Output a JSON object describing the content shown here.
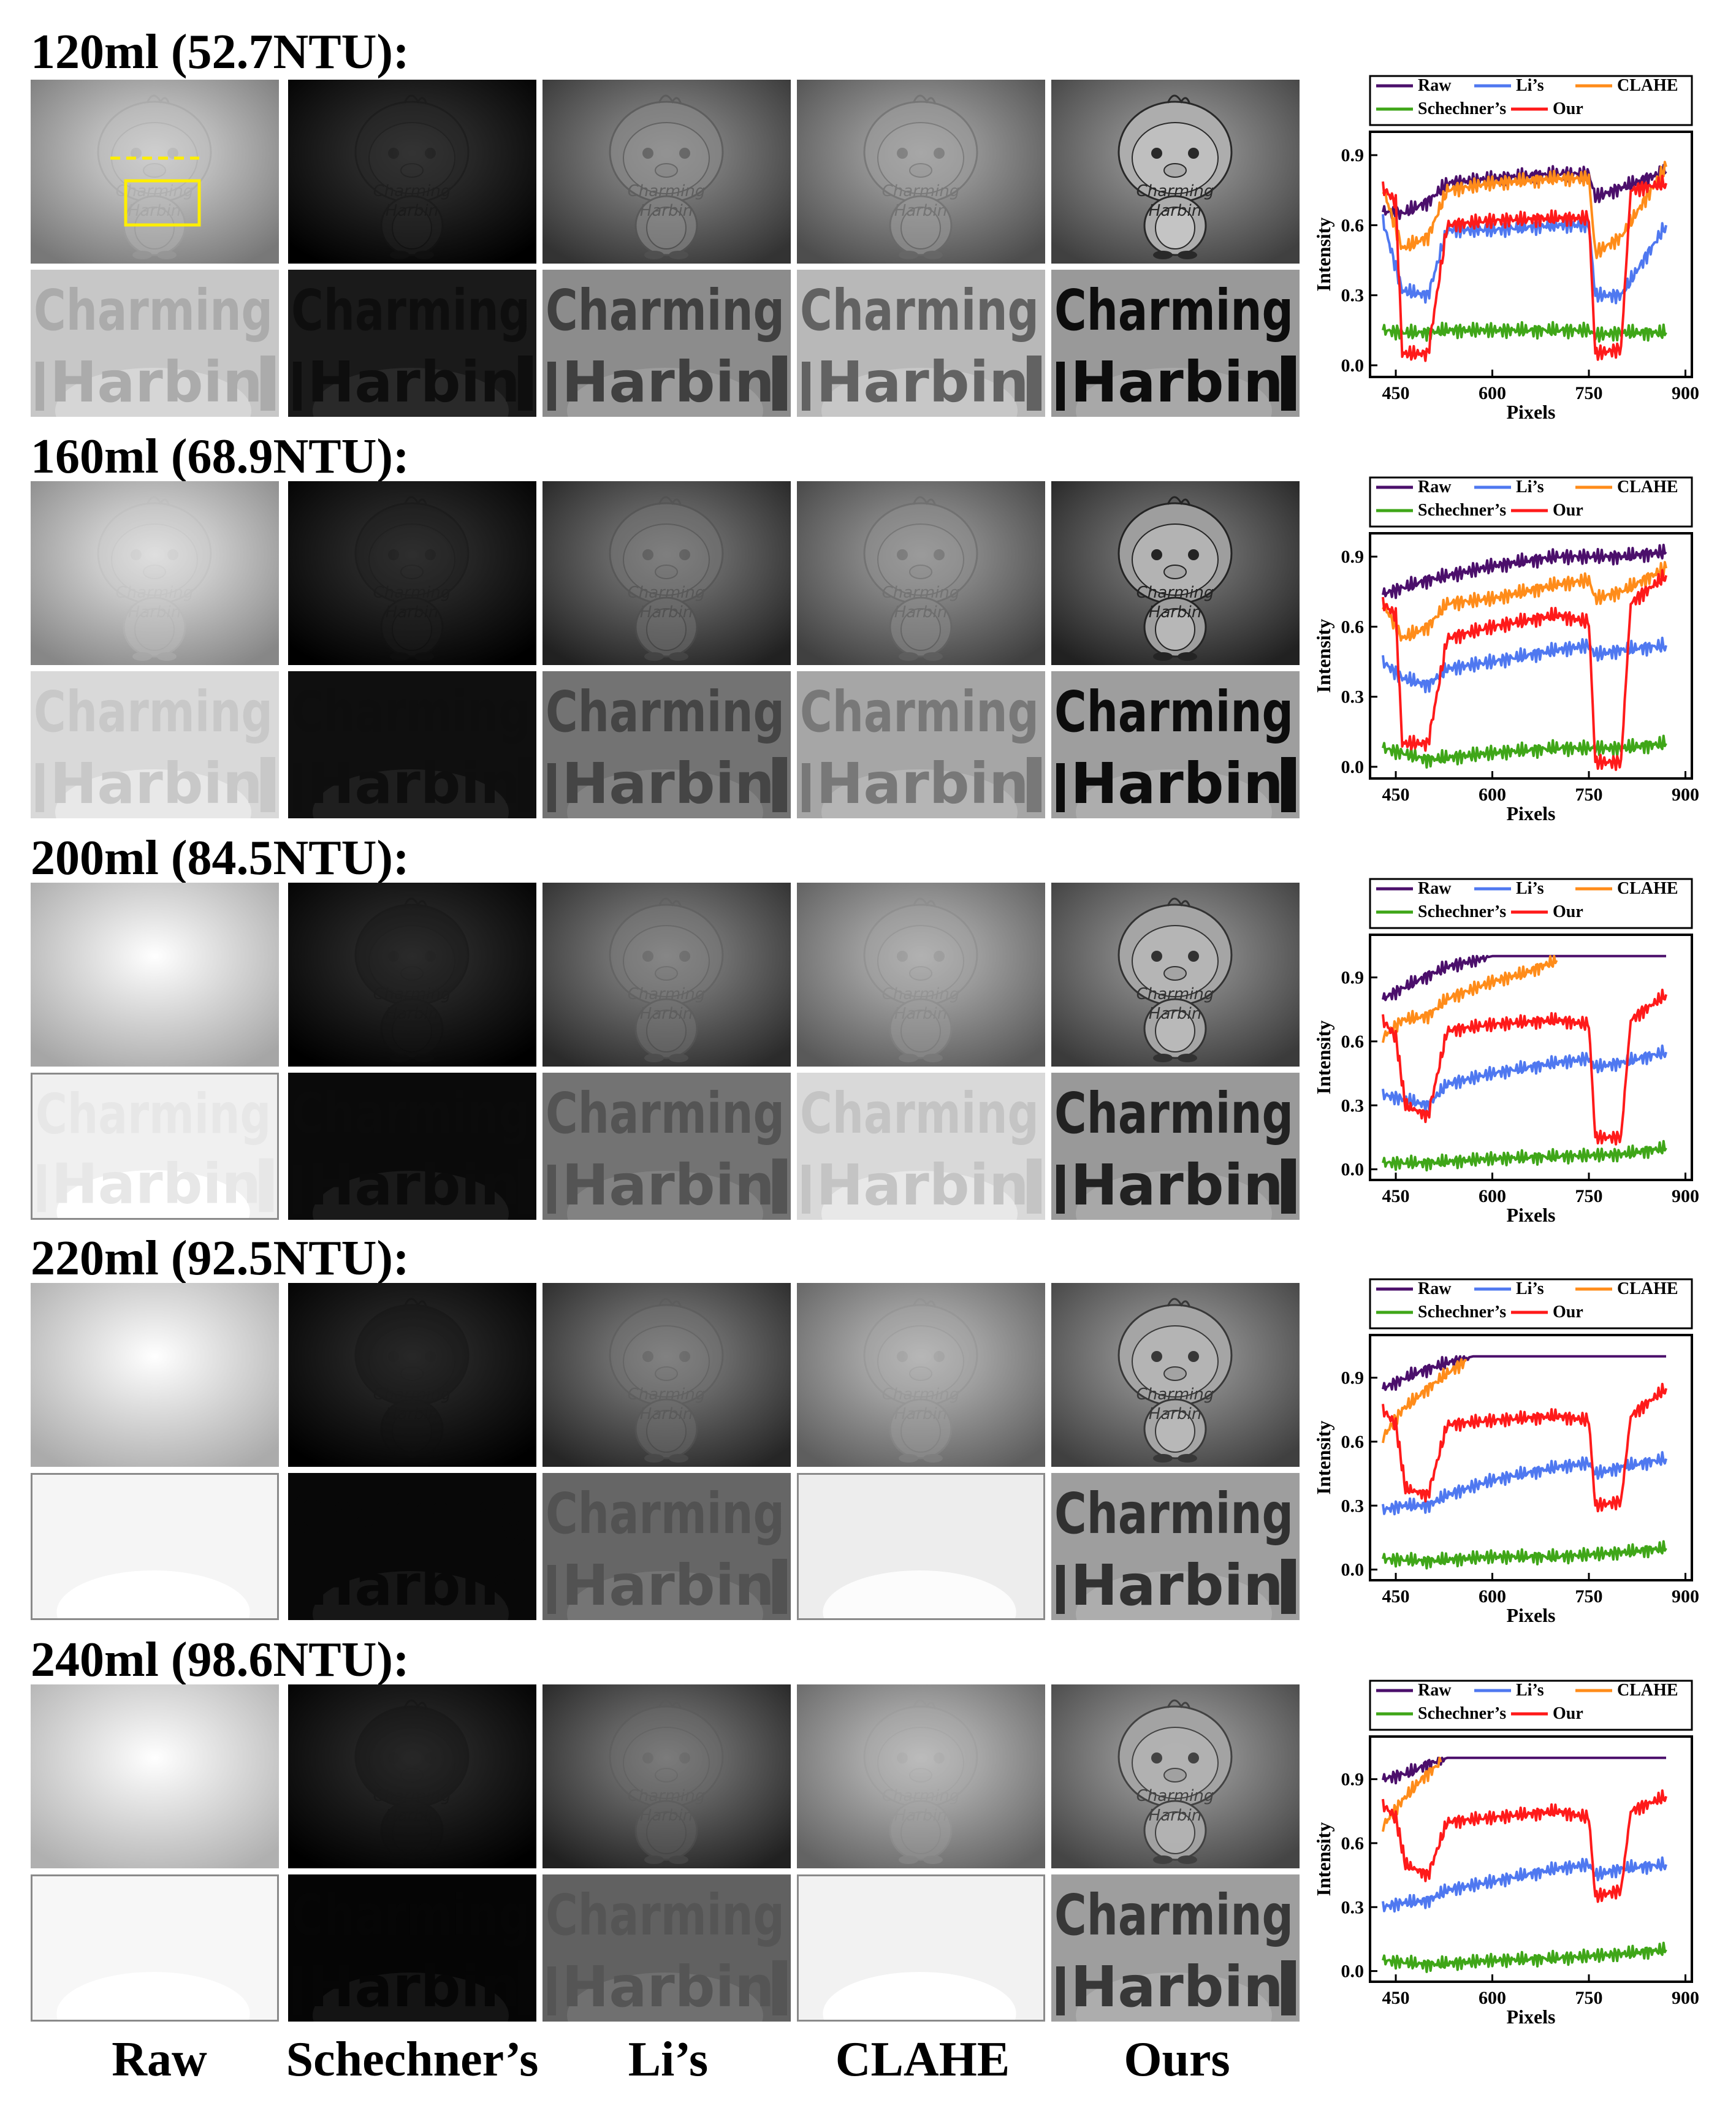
{
  "columns": [
    "Raw",
    "Schechner’s",
    "Li’s",
    "CLAHE",
    "Ours"
  ],
  "overlay_text": [
    "Charming",
    "Harbin"
  ],
  "legend": [
    {
      "name": "Raw",
      "color": "#4b0f6b"
    },
    {
      "name": "Li’s",
      "color": "#4f78f0"
    },
    {
      "name": "CLAHE",
      "color": "#ff8c1a"
    },
    {
      "name": "Schechner’s",
      "color": "#3fa618"
    },
    {
      "name": "Our",
      "color": "#ff1a1a"
    }
  ],
  "axis_labels": {
    "x": "Pixels",
    "y": "Intensity"
  },
  "rows": [
    {
      "title": "120ml (52.7NTU):",
      "brightness": {
        "Raw": 0.72,
        "Schechner": 0.08,
        "Li": 0.45,
        "CLAHE": 0.55,
        "Ours": 0.5
      },
      "crop_brightness": {
        "Raw": 0.78,
        "Schechner": 0.1,
        "Li": 0.55,
        "CLAHE": 0.72,
        "Ours": 0.6
      },
      "figure_contrast": {
        "Raw": 0.15,
        "Schechner": 0.15,
        "Li": 0.35,
        "CLAHE": 0.3,
        "Ours": 0.85
      },
      "text_contrast": {
        "Raw": 0.15,
        "Schechner": 0.9,
        "Li": 0.6,
        "CLAHE": 0.5,
        "Ours": 1.0
      },
      "chart_data": {
        "type": "line",
        "xlabel": "Pixels",
        "ylabel": "Intensity",
        "xlim": [
          410,
          910
        ],
        "ylim": [
          -0.05,
          1.0
        ],
        "xticks": [
          450,
          600,
          750,
          900
        ],
        "yticks": [
          0.0,
          0.3,
          0.6,
          0.9
        ],
        "series": [
          {
            "name": "Raw",
            "x": [
              430,
              460,
              500,
              530,
              600,
              700,
              750,
              760,
              800,
              870
            ],
            "y": [
              0.66,
              0.65,
              0.7,
              0.78,
              0.8,
              0.82,
              0.82,
              0.72,
              0.76,
              0.83
            ]
          },
          {
            "name": "Li’s",
            "x": [
              430,
              460,
              500,
              530,
              600,
              700,
              750,
              760,
              800,
              870
            ],
            "y": [
              0.62,
              0.32,
              0.3,
              0.58,
              0.58,
              0.6,
              0.6,
              0.3,
              0.3,
              0.6
            ]
          },
          {
            "name": "CLAHE",
            "x": [
              430,
              460,
              500,
              530,
              600,
              700,
              750,
              760,
              800,
              870
            ],
            "y": [
              0.76,
              0.5,
              0.55,
              0.75,
              0.78,
              0.8,
              0.8,
              0.48,
              0.55,
              0.85
            ]
          },
          {
            "name": "Schechner’s",
            "x": [
              430,
              460,
              500,
              530,
              600,
              700,
              750,
              760,
              800,
              870
            ],
            "y": [
              0.15,
              0.14,
              0.14,
              0.15,
              0.15,
              0.15,
              0.15,
              0.13,
              0.14,
              0.14
            ]
          },
          {
            "name": "Our",
            "x": [
              430,
              450,
              460,
              500,
              530,
              600,
              700,
              750,
              760,
              800,
              815,
              870
            ],
            "y": [
              0.76,
              0.7,
              0.05,
              0.05,
              0.6,
              0.62,
              0.63,
              0.63,
              0.05,
              0.07,
              0.75,
              0.78
            ]
          }
        ]
      }
    },
    {
      "title": "160ml (68.9NTU):",
      "brightness": {
        "Raw": 0.78,
        "Schechner": 0.07,
        "Li": 0.38,
        "CLAHE": 0.5,
        "Ours": 0.38
      },
      "crop_brightness": {
        "Raw": 0.85,
        "Schechner": 0.06,
        "Li": 0.45,
        "CLAHE": 0.65,
        "Ours": 0.62
      },
      "figure_contrast": {
        "Raw": 0.08,
        "Schechner": 0.1,
        "Li": 0.25,
        "CLAHE": 0.25,
        "Ours": 0.85
      },
      "text_contrast": {
        "Raw": 0.08,
        "Schechner": 0.5,
        "Li": 0.45,
        "CLAHE": 0.3,
        "Ours": 1.0
      },
      "chart_data": {
        "type": "line",
        "xlabel": "Pixels",
        "ylabel": "Intensity",
        "xlim": [
          410,
          910
        ],
        "ylim": [
          -0.05,
          1.0
        ],
        "xticks": [
          450,
          600,
          750,
          900
        ],
        "yticks": [
          0.0,
          0.3,
          0.6,
          0.9
        ],
        "series": [
          {
            "name": "Raw",
            "x": [
              430,
              500,
              600,
              700,
              800,
              870
            ],
            "y": [
              0.74,
              0.8,
              0.86,
              0.9,
              0.9,
              0.92
            ]
          },
          {
            "name": "Li’s",
            "x": [
              430,
              460,
              500,
              530,
              600,
              700,
              750,
              760,
              800,
              870
            ],
            "y": [
              0.45,
              0.38,
              0.35,
              0.42,
              0.45,
              0.5,
              0.52,
              0.48,
              0.5,
              0.52
            ]
          },
          {
            "name": "CLAHE",
            "x": [
              430,
              460,
              500,
              530,
              600,
              700,
              750,
              760,
              800,
              870
            ],
            "y": [
              0.7,
              0.55,
              0.6,
              0.7,
              0.72,
              0.78,
              0.8,
              0.72,
              0.75,
              0.85
            ]
          },
          {
            "name": "Schechner’s",
            "x": [
              430,
              500,
              600,
              700,
              800,
              870
            ],
            "y": [
              0.08,
              0.03,
              0.06,
              0.08,
              0.08,
              0.1
            ]
          },
          {
            "name": "Our",
            "x": [
              430,
              450,
              460,
              500,
              530,
              600,
              700,
              750,
              760,
              800,
              815,
              870
            ],
            "y": [
              0.7,
              0.65,
              0.1,
              0.1,
              0.55,
              0.6,
              0.65,
              0.62,
              0.02,
              0.02,
              0.7,
              0.82
            ]
          }
        ]
      }
    },
    {
      "title": "200ml (84.5NTU):",
      "brightness": {
        "Raw": 0.9,
        "Schechner": 0.06,
        "Li": 0.42,
        "CLAHE": 0.6,
        "Ours": 0.48
      },
      "crop_brightness": {
        "Raw": 0.94,
        "Schechner": 0.04,
        "Li": 0.45,
        "CLAHE": 0.85,
        "Ours": 0.6
      },
      "figure_contrast": {
        "Raw": 0.0,
        "Schechner": 0.05,
        "Li": 0.2,
        "CLAHE": 0.15,
        "Ours": 0.75
      },
      "text_contrast": {
        "Raw": 0.04,
        "Schechner": 0.25,
        "Li": 0.3,
        "CLAHE": 0.1,
        "Ours": 0.85
      },
      "chart_data": {
        "type": "line",
        "xlabel": "Pixels",
        "ylabel": "Intensity",
        "xlim": [
          410,
          910
        ],
        "ylim": [
          -0.05,
          1.1
        ],
        "xticks": [
          450,
          600,
          750,
          900
        ],
        "yticks": [
          0.0,
          0.3,
          0.6,
          0.9
        ],
        "series": [
          {
            "name": "Raw",
            "x": [
              430,
              480,
              530,
              600,
              870
            ],
            "y": [
              0.8,
              0.88,
              0.95,
              1.0,
              1.0
            ]
          },
          {
            "name": "Li’s",
            "x": [
              430,
              460,
              500,
              530,
              600,
              700,
              750,
              760,
              800,
              870
            ],
            "y": [
              0.35,
              0.33,
              0.3,
              0.4,
              0.45,
              0.5,
              0.52,
              0.48,
              0.5,
              0.55
            ]
          },
          {
            "name": "CLAHE",
            "x": [
              430,
              460,
              500,
              530,
              600,
              650,
              700
            ],
            "y": [
              0.62,
              0.7,
              0.72,
              0.8,
              0.88,
              0.92,
              0.98
            ]
          },
          {
            "name": "Schechner’s",
            "x": [
              430,
              500,
              600,
              700,
              800,
              870
            ],
            "y": [
              0.03,
              0.03,
              0.05,
              0.06,
              0.07,
              0.1
            ]
          },
          {
            "name": "Our",
            "x": [
              430,
              450,
              465,
              500,
              530,
              600,
              700,
              750,
              760,
              800,
              815,
              870
            ],
            "y": [
              0.7,
              0.62,
              0.3,
              0.25,
              0.65,
              0.68,
              0.7,
              0.68,
              0.15,
              0.15,
              0.7,
              0.82
            ]
          }
        ]
      }
    },
    {
      "title": "220ml (92.5NTU):",
      "brightness": {
        "Raw": 0.92,
        "Schechner": 0.05,
        "Li": 0.4,
        "CLAHE": 0.62,
        "Ours": 0.5
      },
      "crop_brightness": {
        "Raw": 0.96,
        "Schechner": 0.03,
        "Li": 0.4,
        "CLAHE": 0.93,
        "Ours": 0.62
      },
      "figure_contrast": {
        "Raw": 0.0,
        "Schechner": 0.03,
        "Li": 0.18,
        "CLAHE": 0.12,
        "Ours": 0.7
      },
      "text_contrast": {
        "Raw": 0.0,
        "Schechner": 0.12,
        "Li": 0.22,
        "CLAHE": 0.0,
        "Ours": 0.75
      },
      "chart_data": {
        "type": "line",
        "xlabel": "Pixels",
        "ylabel": "Intensity",
        "xlim": [
          410,
          910
        ],
        "ylim": [
          -0.05,
          1.1
        ],
        "xticks": [
          450,
          600,
          750,
          900
        ],
        "yticks": [
          0.0,
          0.3,
          0.6,
          0.9
        ],
        "series": [
          {
            "name": "Raw",
            "x": [
              430,
              480,
              530,
              570,
              870
            ],
            "y": [
              0.85,
              0.92,
              0.97,
              1.0,
              1.0
            ]
          },
          {
            "name": "Li’s",
            "x": [
              430,
              460,
              500,
              530,
              600,
              700,
              750,
              760,
              800,
              870
            ],
            "y": [
              0.28,
              0.3,
              0.3,
              0.35,
              0.42,
              0.48,
              0.5,
              0.45,
              0.48,
              0.52
            ]
          },
          {
            "name": "CLAHE",
            "x": [
              430,
              460,
              500,
              530,
              560
            ],
            "y": [
              0.62,
              0.75,
              0.85,
              0.92,
              0.98
            ]
          },
          {
            "name": "Schechner’s",
            "x": [
              430,
              500,
              600,
              700,
              800,
              870
            ],
            "y": [
              0.05,
              0.04,
              0.06,
              0.06,
              0.08,
              0.1
            ]
          },
          {
            "name": "Our",
            "x": [
              430,
              450,
              465,
              500,
              530,
              600,
              700,
              750,
              760,
              800,
              815,
              870
            ],
            "y": [
              0.75,
              0.68,
              0.38,
              0.35,
              0.68,
              0.7,
              0.72,
              0.7,
              0.3,
              0.32,
              0.72,
              0.85
            ]
          }
        ]
      }
    },
    {
      "title": "240ml (98.6NTU):",
      "brightness": {
        "Raw": 0.94,
        "Schechner": 0.05,
        "Li": 0.38,
        "CLAHE": 0.64,
        "Ours": 0.52
      },
      "crop_brightness": {
        "Raw": 0.97,
        "Schechner": 0.02,
        "Li": 0.38,
        "CLAHE": 0.95,
        "Ours": 0.62
      },
      "figure_contrast": {
        "Raw": 0.0,
        "Schechner": 0.02,
        "Li": 0.12,
        "CLAHE": 0.08,
        "Ours": 0.65
      },
      "text_contrast": {
        "Raw": 0.0,
        "Schechner": 0.06,
        "Li": 0.14,
        "CLAHE": 0.0,
        "Ours": 0.7
      },
      "chart_data": {
        "type": "line",
        "xlabel": "Pixels",
        "ylabel": "Intensity",
        "xlim": [
          410,
          910
        ],
        "ylim": [
          -0.05,
          1.1
        ],
        "xticks": [
          450,
          600,
          750,
          900
        ],
        "yticks": [
          0.0,
          0.3,
          0.6,
          0.9
        ],
        "series": [
          {
            "name": "Raw",
            "x": [
              430,
              470,
              500,
              530,
              870
            ],
            "y": [
              0.9,
              0.93,
              0.97,
              1.0,
              1.0
            ]
          },
          {
            "name": "Li’s",
            "x": [
              430,
              460,
              500,
              530,
              600,
              700,
              750,
              760,
              800,
              870
            ],
            "y": [
              0.3,
              0.32,
              0.33,
              0.38,
              0.42,
              0.48,
              0.5,
              0.45,
              0.48,
              0.5
            ]
          },
          {
            "name": "CLAHE",
            "x": [
              430,
              460,
              490,
              520
            ],
            "y": [
              0.68,
              0.8,
              0.9,
              0.98
            ]
          },
          {
            "name": "Schechner’s",
            "x": [
              430,
              500,
              600,
              700,
              800,
              870
            ],
            "y": [
              0.05,
              0.03,
              0.05,
              0.06,
              0.08,
              0.1
            ]
          },
          {
            "name": "Our",
            "x": [
              430,
              450,
              465,
              500,
              530,
              600,
              700,
              750,
              760,
              800,
              815,
              870
            ],
            "y": [
              0.78,
              0.72,
              0.5,
              0.45,
              0.7,
              0.72,
              0.75,
              0.72,
              0.35,
              0.38,
              0.75,
              0.82
            ]
          }
        ]
      }
    }
  ]
}
